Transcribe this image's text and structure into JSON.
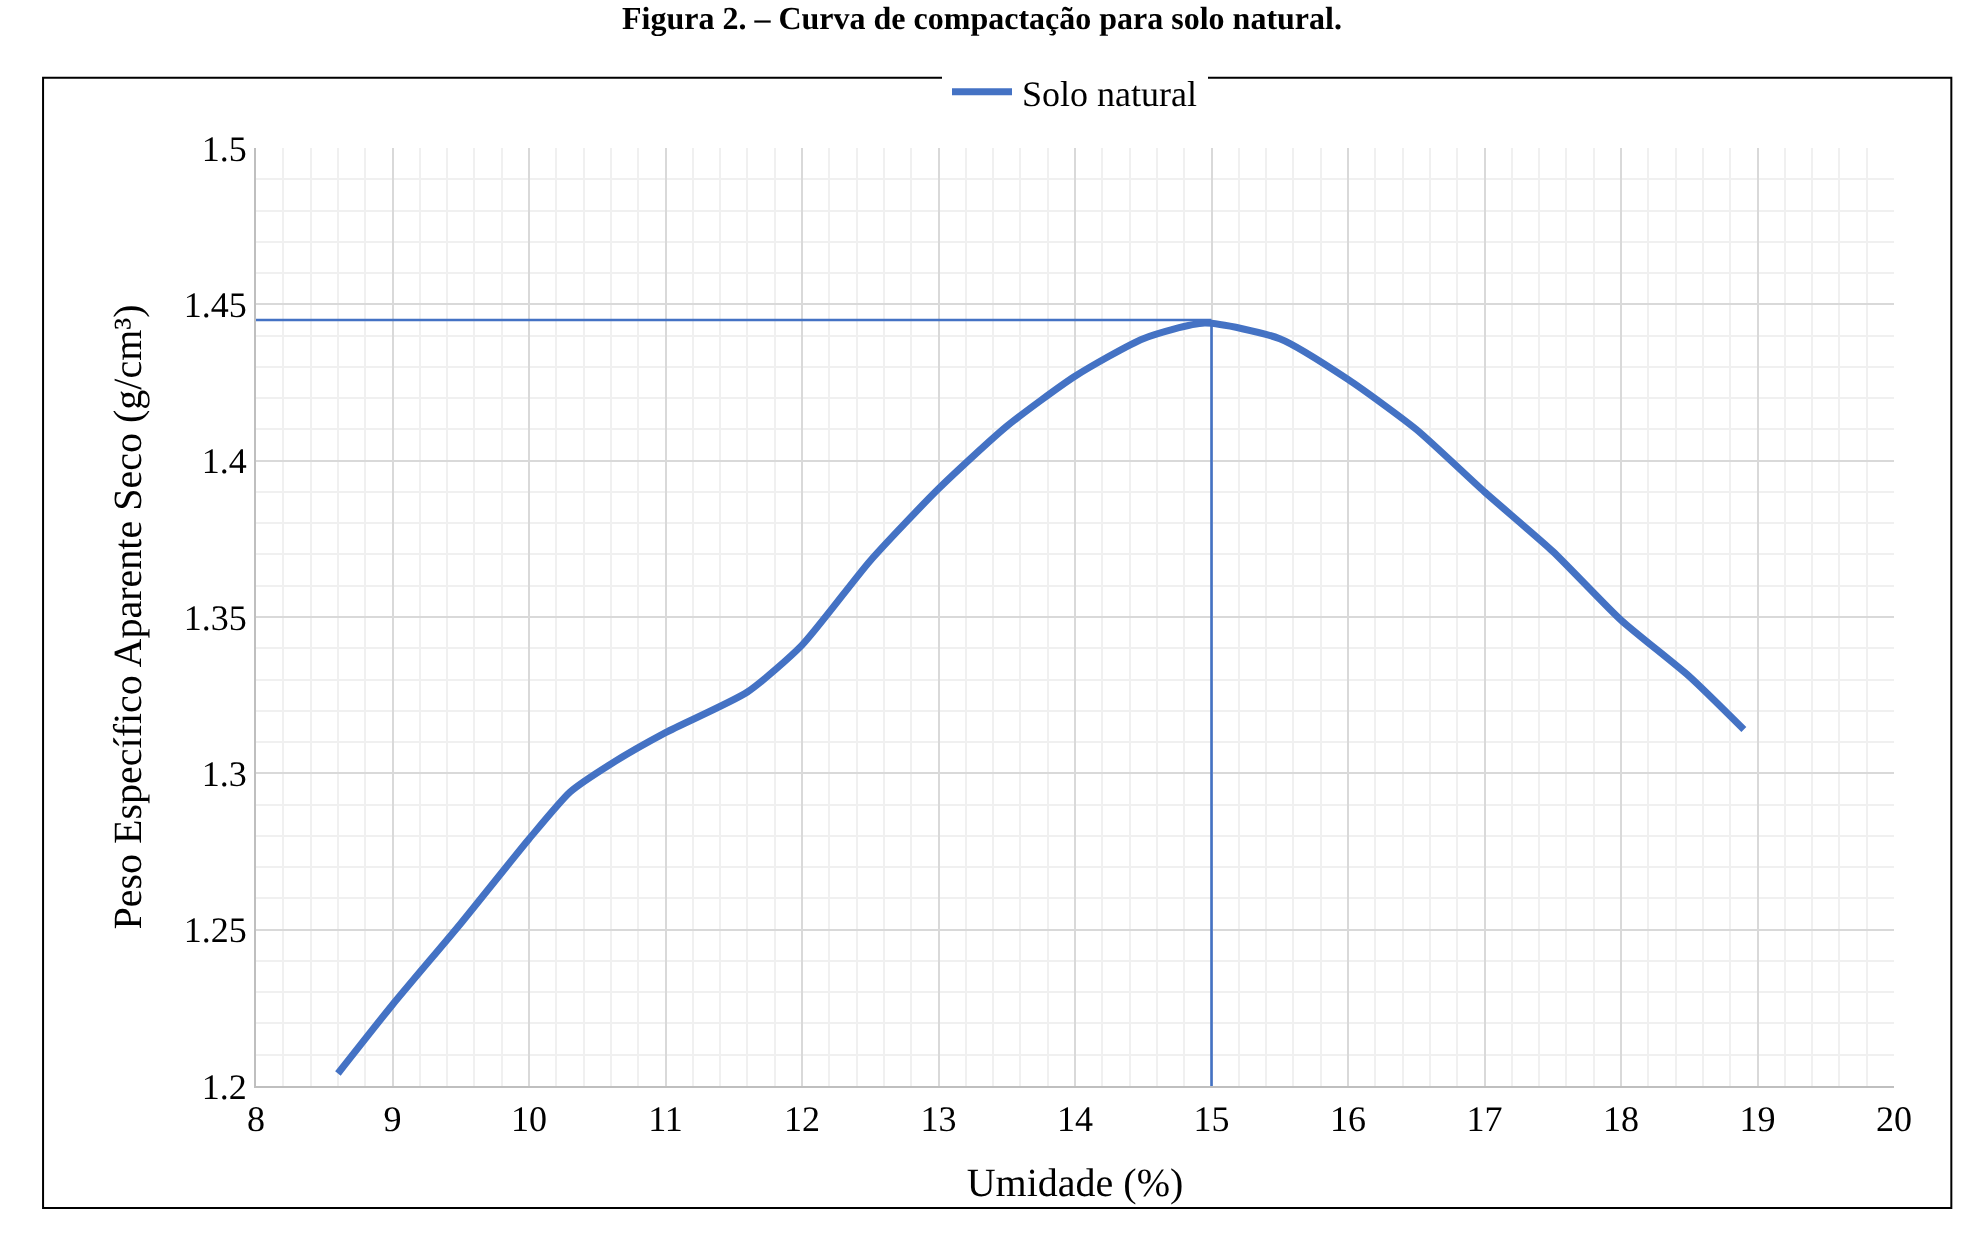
{
  "chart_data": {
    "type": "line",
    "title": "Figura 2. – Curva de compactação para solo natural.",
    "xlabel": "Umidade (%)",
    "ylabel": "Peso Específico Aparente Seco (g/cm³)",
    "series": [
      {
        "name": "Solo natural",
        "color": "#4472c4",
        "x": [
          8.6,
          9,
          9.5,
          10,
          10.3,
          10.6,
          11,
          11.6,
          12,
          12.5,
          13,
          13.5,
          14,
          14.5,
          14.95,
          15.5,
          16,
          16.5,
          17,
          17.5,
          18,
          18.5,
          18.9
        ],
        "values": [
          1.204,
          1.226,
          1.252,
          1.279,
          1.294,
          1.303,
          1.313,
          1.326,
          1.341,
          1.368,
          1.391,
          1.411,
          1.427,
          1.439,
          1.444,
          1.439,
          1.426,
          1.41,
          1.39,
          1.371,
          1.349,
          1.331,
          1.314
        ]
      }
    ],
    "xlim": [
      8,
      20
    ],
    "xticks": [
      8,
      9,
      10,
      11,
      12,
      13,
      14,
      15,
      16,
      17,
      18,
      19,
      20
    ],
    "ylim": [
      1.2,
      1.5
    ],
    "yticks": [
      1.2,
      1.25,
      1.3,
      1.35,
      1.4,
      1.45,
      1.5
    ],
    "ref_lines": [
      {
        "axis": "y",
        "value": 1.445,
        "color": "#4472c4"
      },
      {
        "axis": "x",
        "value": 15.0,
        "color": "#4472c4"
      }
    ],
    "grid": true,
    "legend": "top",
    "marker": "none",
    "line_style": "solid"
  }
}
